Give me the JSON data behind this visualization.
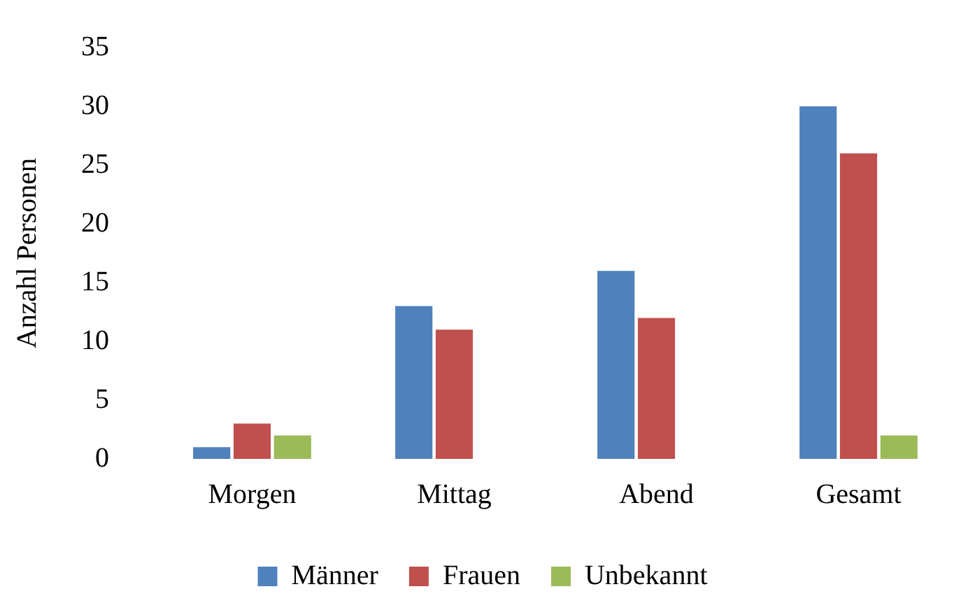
{
  "chart_data": {
    "type": "bar",
    "ylabel": "Anzahl Personen",
    "categories": [
      "Morgen",
      "Mittag",
      "Abend",
      "Gesamt"
    ],
    "series": [
      {
        "name": "Männer",
        "color": "#4f81bd",
        "values": [
          1,
          13,
          16,
          30
        ]
      },
      {
        "name": "Frauen",
        "color": "#c0504d",
        "values": [
          3,
          11,
          12,
          26
        ]
      },
      {
        "name": "Unbekannt",
        "color": "#9bbb59",
        "values": [
          2,
          null,
          null,
          2
        ]
      }
    ],
    "ylim": [
      0,
      35
    ],
    "yticks": [
      0,
      5,
      10,
      15,
      20,
      25,
      30,
      35
    ],
    "grid": false,
    "legend": "bottom"
  }
}
